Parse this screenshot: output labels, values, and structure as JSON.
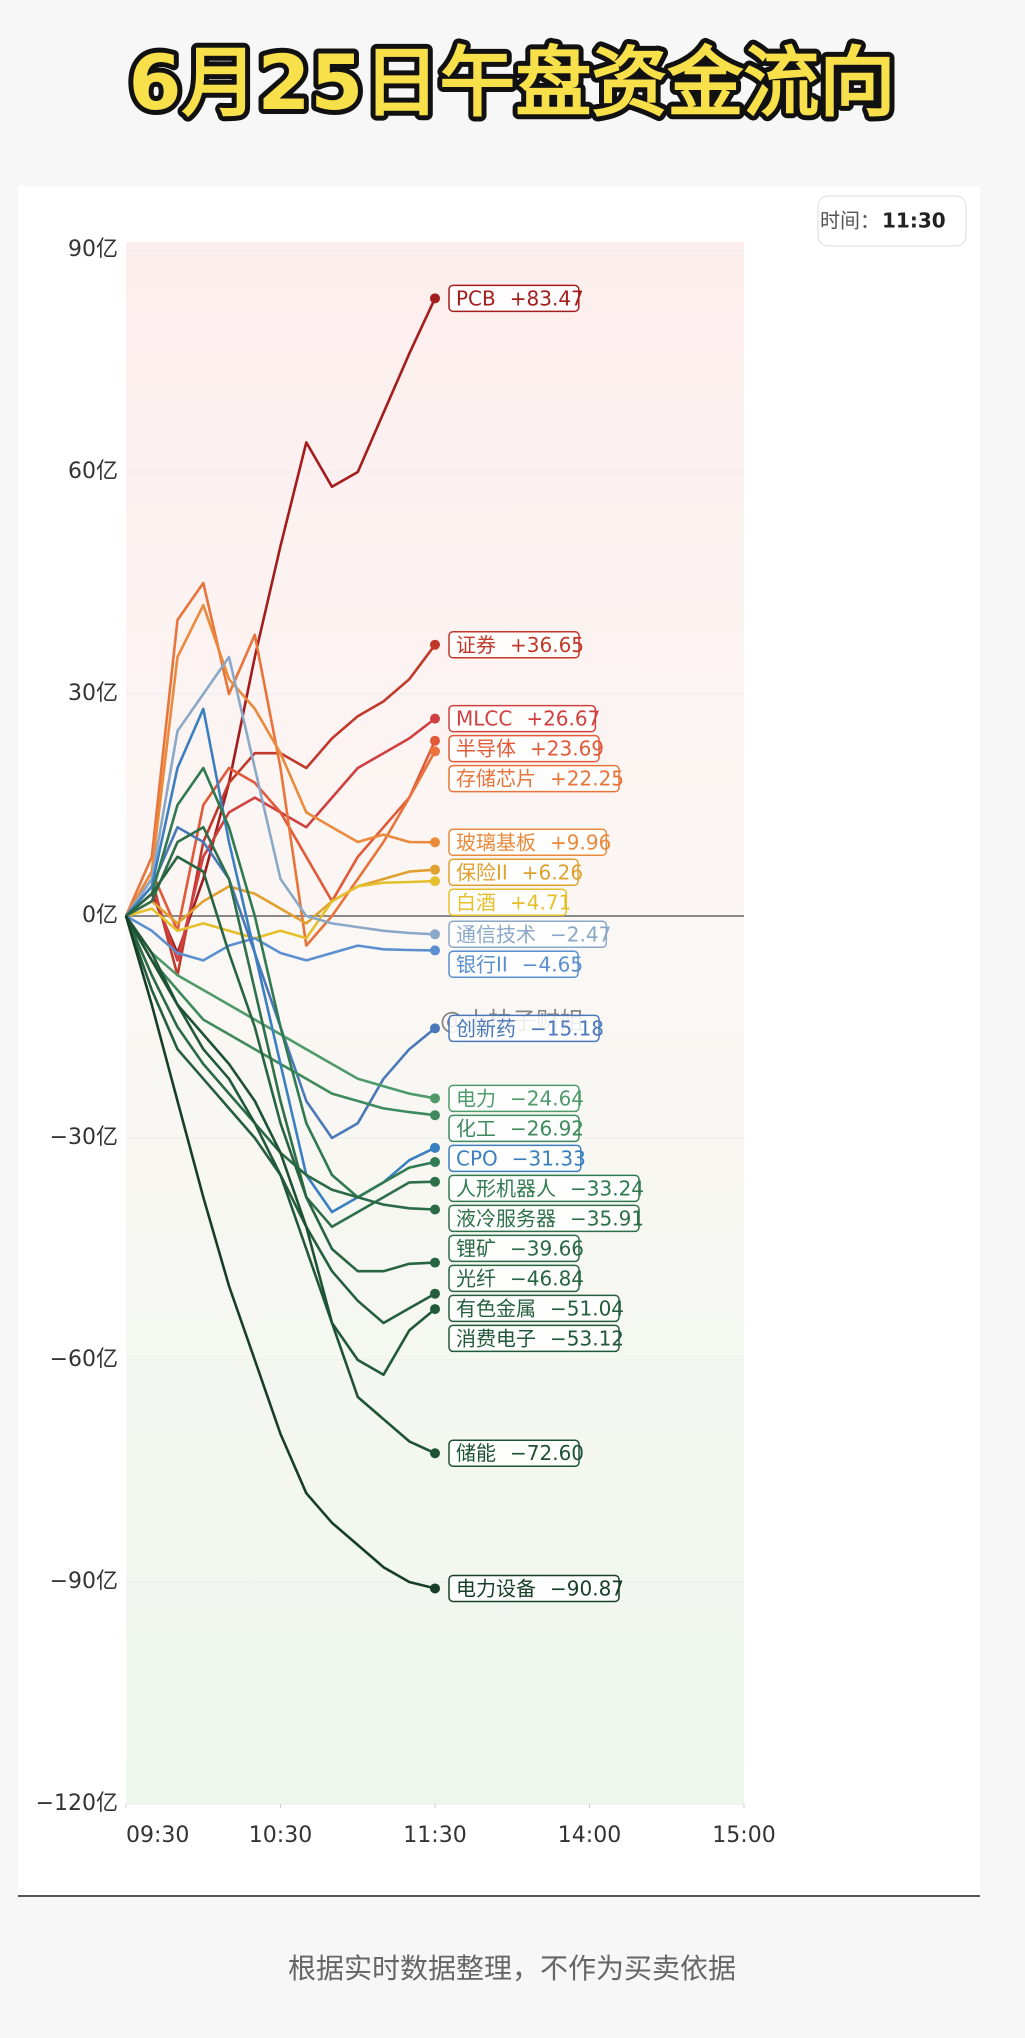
{
  "chart_data": {
    "type": "line",
    "title": "6月25日午盘资金流向",
    "badge_label": "时间：",
    "badge_time": "11:30",
    "watermark": "@小柚子财姐",
    "footnote": "根据实时数据整理，不作为买卖依据",
    "x": [
      0,
      10,
      20,
      30,
      40,
      50,
      60,
      70,
      80,
      90,
      100,
      110,
      120
    ],
    "xlim": [
      0,
      240
    ],
    "xticks": [
      {
        "value": 0,
        "label": "09:30"
      },
      {
        "value": 60,
        "label": "10:30"
      },
      {
        "value": 120,
        "label": "11:30"
      },
      {
        "value": 180,
        "label": "14:00"
      },
      {
        "value": 240,
        "label": "15:00"
      }
    ],
    "ylim": [
      -120,
      90
    ],
    "yticks": [
      {
        "value": 90,
        "label": "90亿"
      },
      {
        "value": 60,
        "label": "60亿"
      },
      {
        "value": 30,
        "label": "30亿"
      },
      {
        "value": 0,
        "label": "0亿"
      },
      {
        "value": -30,
        "label": "−30亿"
      },
      {
        "value": -60,
        "label": "−60亿"
      },
      {
        "value": -90,
        "label": "−90亿"
      },
      {
        "value": -120,
        "label": "−120亿"
      }
    ],
    "series": [
      {
        "name": "PCB",
        "color": "#a31d1d",
        "values": [
          0,
          3,
          -5,
          5,
          18,
          35,
          50,
          64,
          58,
          60,
          68,
          76,
          83.47
        ],
        "value_labels": [
          "+83.47"
        ]
      },
      {
        "name": "证券",
        "color": "#c0392b",
        "values": [
          0,
          5,
          -8,
          10,
          18,
          22,
          22,
          20,
          24,
          27,
          29,
          32,
          36.65
        ],
        "value_labels": [
          "+36.65"
        ]
      },
      {
        "name": "MLCC",
        "color": "#d04040",
        "values": [
          0,
          4,
          -6,
          8,
          14,
          16,
          14,
          12,
          16,
          20,
          22,
          24,
          26.67
        ],
        "value_labels": [
          "+26.67"
        ]
      },
      {
        "name": "半导体",
        "color": "#e05a3a",
        "values": [
          0,
          6,
          -2,
          15,
          20,
          18,
          14,
          8,
          2,
          8,
          12,
          16,
          23.69
        ],
        "value_labels": [
          "+23.69"
        ]
      },
      {
        "name": "存储芯片",
        "color": "#e8743b",
        "values": [
          0,
          8,
          40,
          45,
          30,
          38,
          20,
          -4,
          0,
          5,
          10,
          16,
          22.25
        ],
        "value_labels": [
          "+22.25"
        ]
      },
      {
        "name": "玻璃基板",
        "color": "#ea8a3c",
        "values": [
          0,
          6,
          35,
          42,
          32,
          28,
          22,
          14,
          12,
          10,
          11,
          10,
          9.96
        ],
        "value_labels": [
          "+9.96"
        ]
      },
      {
        "name": "保险II",
        "color": "#e0a030",
        "values": [
          0,
          2,
          -1,
          2,
          4,
          3,
          1,
          -1,
          2,
          4,
          5,
          6,
          6.26
        ],
        "value_labels": [
          "+6.26"
        ]
      },
      {
        "name": "白酒",
        "color": "#e6c02c",
        "values": [
          0,
          1,
          -2,
          -1,
          -2,
          -3,
          -2,
          -3,
          2,
          4,
          4.5,
          4.6,
          4.71
        ],
        "value_labels": [
          "+4.71"
        ]
      },
      {
        "name": "通信技术",
        "color": "#8aa8c8",
        "values": [
          0,
          5,
          25,
          30,
          35,
          20,
          5,
          0,
          -1,
          -1.5,
          -2,
          -2.3,
          -2.47
        ],
        "value_labels": [
          "−2.47"
        ]
      },
      {
        "name": "银行II",
        "color": "#5b8fd0",
        "values": [
          0,
          -2,
          -5,
          -6,
          -4,
          -3,
          -5,
          -6,
          -5,
          -4,
          -4.5,
          -4.6,
          -4.65
        ],
        "value_labels": [
          "−4.65"
        ]
      },
      {
        "name": "创新药",
        "color": "#4a78b8",
        "values": [
          0,
          4,
          12,
          10,
          5,
          -5,
          -15,
          -25,
          -30,
          -28,
          -22,
          -18,
          -15.18
        ],
        "value_labels": [
          "−15.18"
        ]
      },
      {
        "name": "电力",
        "color": "#4f9a6a",
        "values": [
          0,
          -5,
          -8,
          -10,
          -12,
          -14,
          -16,
          -18,
          -20,
          -22,
          -23,
          -24,
          -24.64
        ],
        "value_labels": [
          "−24.64"
        ]
      },
      {
        "name": "化工",
        "color": "#3f8a5c",
        "values": [
          0,
          -6,
          -10,
          -14,
          -16,
          -18,
          -20,
          -22,
          -24,
          -25,
          -26,
          -26.5,
          -26.92
        ],
        "value_labels": [
          "−26.92"
        ]
      },
      {
        "name": "CPO",
        "color": "#3a7fc0",
        "values": [
          0,
          4,
          20,
          28,
          10,
          -5,
          -20,
          -35,
          -40,
          -38,
          -36,
          -33,
          -31.33
        ],
        "value_labels": [
          "−31.33"
        ]
      },
      {
        "name": "人形机器人",
        "color": "#2f7a50",
        "values": [
          0,
          3,
          15,
          20,
          12,
          0,
          -15,
          -28,
          -35,
          -38,
          -36,
          -34,
          -33.24
        ],
        "value_labels": [
          "−33.24"
        ]
      },
      {
        "name": "液冷服务器",
        "color": "#2e6f4a",
        "values": [
          0,
          2,
          10,
          12,
          5,
          -10,
          -25,
          -38,
          -42,
          -40,
          -38,
          -36,
          -35.91
        ],
        "value_labels": [
          "−35.91"
        ]
      },
      {
        "name": "锂矿",
        "color": "#2a6a46",
        "values": [
          0,
          -8,
          -15,
          -20,
          -24,
          -28,
          -32,
          -35,
          -37,
          -38,
          -39,
          -39.5,
          -39.66
        ],
        "value_labels": [
          "−39.66"
        ]
      },
      {
        "name": "光纤",
        "color": "#276442",
        "values": [
          0,
          3,
          8,
          6,
          -5,
          -15,
          -28,
          -38,
          -45,
          -48,
          -48,
          -47,
          -46.84
        ],
        "value_labels": [
          "−46.84"
        ]
      },
      {
        "name": "有色金属",
        "color": "#245e3e",
        "values": [
          0,
          -10,
          -18,
          -22,
          -26,
          -30,
          -35,
          -42,
          -48,
          -52,
          -55,
          -53,
          -51.04
        ],
        "value_labels": [
          "−51.04"
        ]
      },
      {
        "name": "消费电子",
        "color": "#22583a",
        "values": [
          0,
          -5,
          -12,
          -18,
          -22,
          -28,
          -35,
          -45,
          -55,
          -60,
          -62,
          -56,
          -53.12
        ],
        "value_labels": [
          "−53.12"
        ]
      },
      {
        "name": "储能",
        "color": "#1e5234",
        "values": [
          0,
          -6,
          -12,
          -16,
          -20,
          -25,
          -32,
          -42,
          -55,
          -65,
          -68,
          -71,
          -72.6
        ],
        "value_labels": [
          "−72.60"
        ]
      },
      {
        "name": "电力设备",
        "color": "#173f28",
        "values": [
          0,
          -12,
          -25,
          -38,
          -50,
          -60,
          -70,
          -78,
          -82,
          -85,
          -88,
          -90,
          -90.87
        ],
        "value_labels": [
          "−90.87"
        ]
      }
    ]
  }
}
